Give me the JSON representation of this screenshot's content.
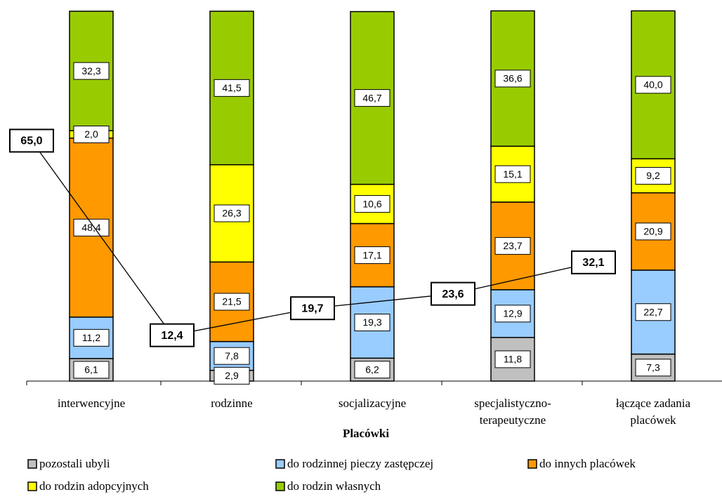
{
  "chart_data": {
    "type": "bar",
    "stacked": true,
    "xlabel": "Placówki",
    "categories": [
      "interwencyjne",
      "rodzinne",
      "socjalizacyjne",
      "specjalistyczno-terapeutyczne",
      "łączące zadania placówek"
    ],
    "ylim": [
      0,
      100
    ],
    "series": [
      {
        "name": "pozostali ubyli",
        "color": "#c0c0c0",
        "values": [
          6.1,
          2.9,
          6.2,
          11.8,
          7.3
        ],
        "value_labels": [
          "6,1",
          "2,9",
          "6,2",
          "11,8",
          "7,3"
        ]
      },
      {
        "name": "do rodzinnej pieczy zastępczej",
        "color": "#99ccff",
        "values": [
          11.2,
          7.8,
          19.3,
          12.9,
          22.7
        ],
        "value_labels": [
          "11,2",
          "7,8",
          "19,3",
          "12,9",
          "22,7"
        ]
      },
      {
        "name": "do innych placówek",
        "color": "#ff9900",
        "values": [
          48.4,
          21.5,
          17.1,
          23.7,
          20.9
        ],
        "value_labels": [
          "48,4",
          "21,5",
          "17,1",
          "23,7",
          "20,9"
        ]
      },
      {
        "name": "do rodzin adopcyjnych",
        "color": "#ffff00",
        "values": [
          2.0,
          26.3,
          10.6,
          15.1,
          9.2
        ],
        "value_labels": [
          "2,0",
          "26,3",
          "10,6",
          "15,1",
          "9,2"
        ]
      },
      {
        "name": "do rodzin własnych",
        "color": "#99cc00",
        "values": [
          32.3,
          41.5,
          46.7,
          36.6,
          40.0
        ],
        "value_labels": [
          "32,3",
          "41,5",
          "46,7",
          "36,6",
          "40,0"
        ]
      }
    ],
    "line": {
      "color": "#000000",
      "values": [
        65.0,
        12.4,
        19.7,
        23.6,
        32.1
      ],
      "value_labels": [
        "65,0",
        "12,4",
        "19,7",
        "23,6",
        "32,1"
      ]
    }
  }
}
